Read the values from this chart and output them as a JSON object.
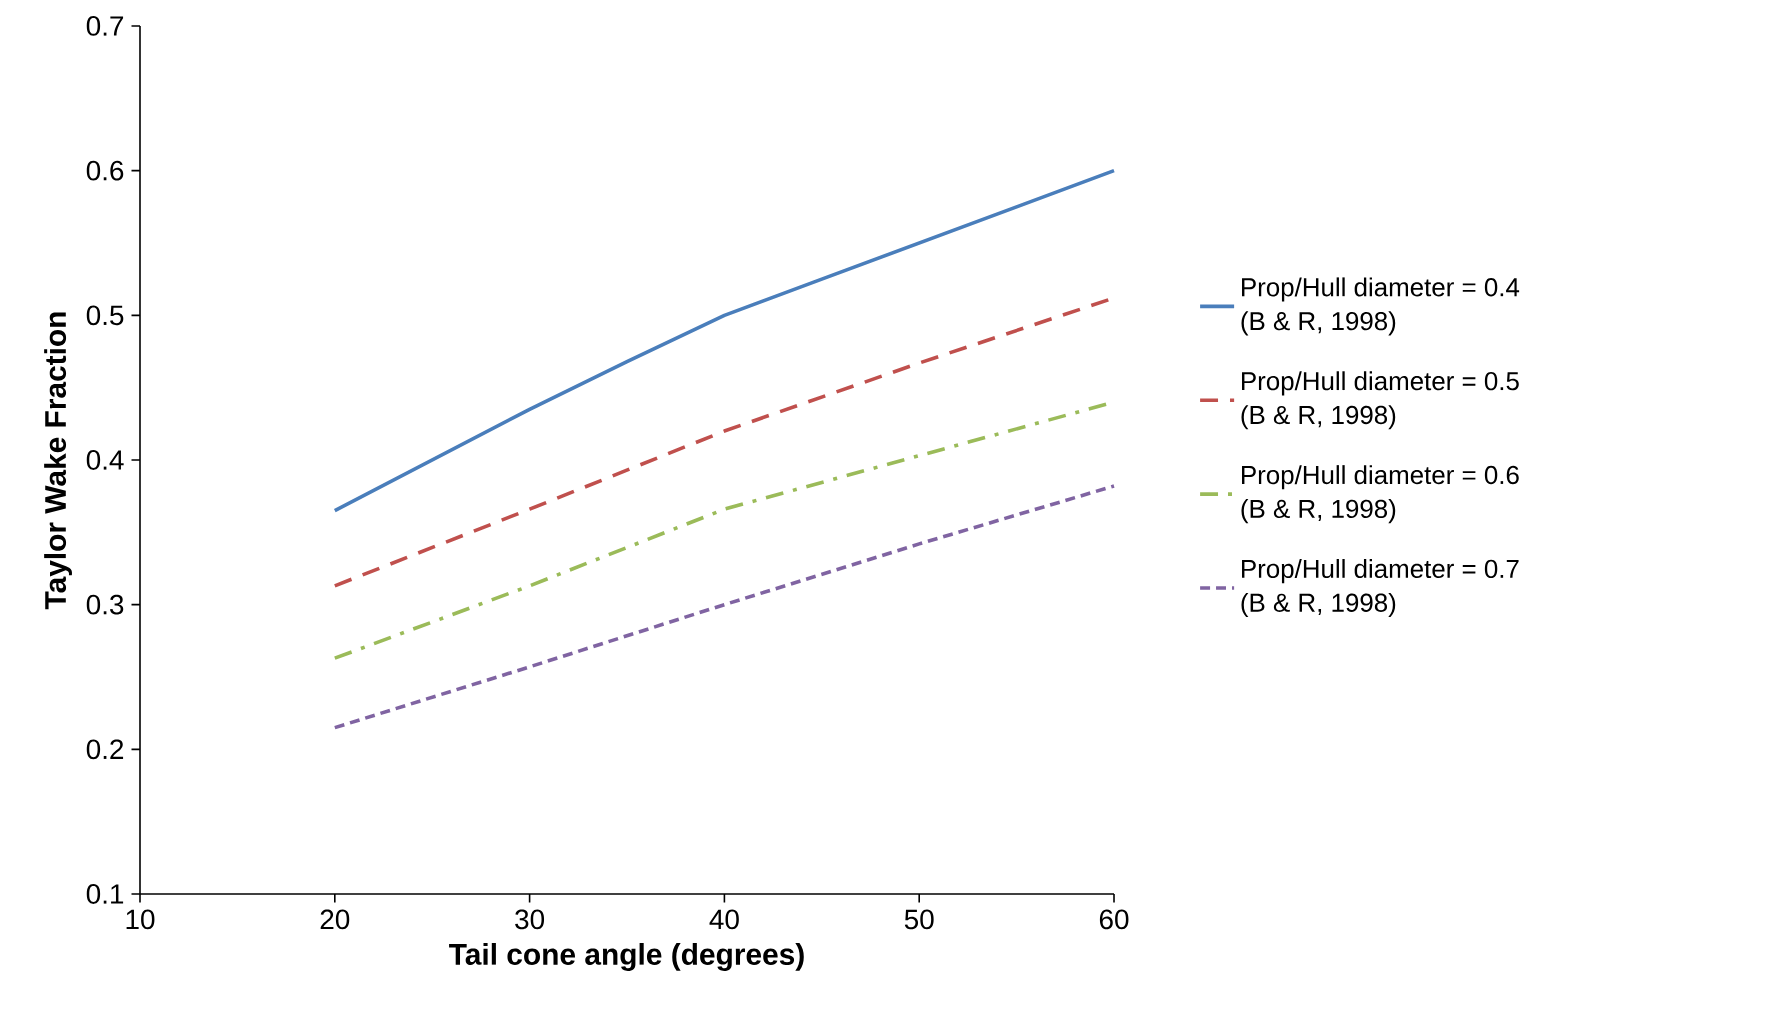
{
  "chart_data": {
    "type": "line",
    "xlabel": "Tail cone angle (degrees)",
    "ylabel": "Taylor Wake Fraction",
    "xlim": [
      10,
      60
    ],
    "xticks": [
      10,
      20,
      30,
      40,
      50,
      60
    ],
    "ylim": [
      0.1,
      0.7
    ],
    "yticks": [
      0.1,
      0.2,
      0.3,
      0.4,
      0.5,
      0.6,
      0.7
    ],
    "grid": false,
    "legend": "right",
    "marker": "none",
    "series": [
      {
        "name": "Prop/Hull diameter = 0.4 (B & R, 1998)",
        "color": "#4a7ebb",
        "line_style": "solid",
        "x": [
          20,
          25,
          30,
          35,
          40,
          45,
          50,
          55,
          60
        ],
        "values": [
          0.365,
          0.4,
          0.435,
          0.468,
          0.5,
          0.525,
          0.55,
          0.575,
          0.6
        ]
      },
      {
        "name": "Prop/Hull diameter = 0.5 (B & R, 1998)",
        "color": "#c0504d",
        "line_style": "dashed",
        "x": [
          20,
          30,
          40,
          50,
          60
        ],
        "values": [
          0.313,
          0.366,
          0.42,
          0.467,
          0.512
        ]
      },
      {
        "name": "Prop/Hull diameter = 0.6 (B & R, 1998)",
        "color": "#9bbb59",
        "line_style": "dashdot",
        "x": [
          20,
          30,
          40,
          50,
          60
        ],
        "values": [
          0.263,
          0.313,
          0.366,
          0.403,
          0.44
        ]
      },
      {
        "name": "Prop/Hull diameter = 0.7 (B & R, 1998)",
        "color": "#8064a2",
        "line_style": "dotted",
        "x": [
          20,
          30,
          40,
          50,
          60
        ],
        "values": [
          0.215,
          0.257,
          0.3,
          0.342,
          0.382
        ]
      }
    ]
  }
}
